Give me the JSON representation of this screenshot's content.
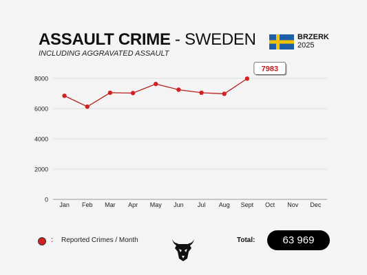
{
  "header": {
    "title_bold": "ASSAULT CRIME",
    "title_rest": " - SWEDEN",
    "subtitle": "INCLUDING AGGRAVATED ASSAULT",
    "brand_name": "BRZERK",
    "brand_year": "2025",
    "flag_icon": "sweden-flag-icon"
  },
  "colors": {
    "series": "#d32020",
    "line": "#b71c1c",
    "flag_blue": "#1f5fa8",
    "flag_yellow": "#f2c200"
  },
  "chart_data": {
    "type": "line",
    "categories": [
      "Jan",
      "Feb",
      "Mar",
      "Apr",
      "May",
      "Jun",
      "Jul",
      "Aug",
      "Sept",
      "Oct",
      "Nov",
      "Dec"
    ],
    "series": [
      {
        "name": "Reported Crimes / Month",
        "values": [
          6850,
          6130,
          7050,
          7030,
          7630,
          7250,
          7050,
          6980,
          7983,
          null,
          null,
          null
        ]
      }
    ],
    "yticks": [
      0,
      2000,
      4000,
      6000,
      8000
    ],
    "ylim": [
      0,
      8000
    ],
    "grid": true,
    "callout": {
      "category": "Sept",
      "label": "7983"
    }
  },
  "legend": {
    "colon": ":",
    "label": "Reported Crimes / Month"
  },
  "total": {
    "label": "Total:",
    "value": "63 969"
  },
  "logo_icon": "bull-skull-logo-icon"
}
